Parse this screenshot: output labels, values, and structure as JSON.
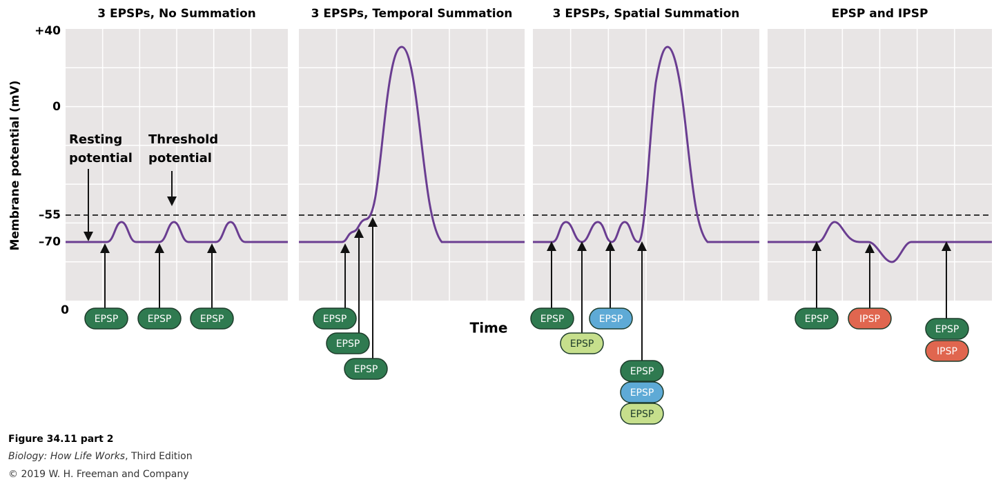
{
  "figure": {
    "axis": {
      "label": "Membrane potential (mV)",
      "ticks": [
        "+40",
        "0",
        "–55",
        "–70",
        "0"
      ],
      "x_label": "Time"
    },
    "annotations": {
      "resting": [
        "Resting",
        "potential"
      ],
      "threshold": [
        "Threshold",
        "potential"
      ]
    },
    "panels": [
      {
        "title": "3 EPSPs, No Summation",
        "badges": [
          {
            "label": "EPSP",
            "color": "#2f7a50"
          },
          {
            "label": "EPSP",
            "color": "#2f7a50"
          },
          {
            "label": "EPSP",
            "color": "#2f7a50"
          }
        ]
      },
      {
        "title": "3 EPSPs, Temporal Summation",
        "badges": [
          {
            "label": "EPSP",
            "color": "#2f7a50"
          },
          {
            "label": "EPSP",
            "color": "#2f7a50"
          },
          {
            "label": "EPSP",
            "color": "#2f7a50"
          }
        ]
      },
      {
        "title": "3 EPSPs, Spatial Summation",
        "badges": [
          {
            "label": "EPSP",
            "color": "#2f7a50"
          },
          {
            "label": "EPSP",
            "color": "#c6df8c"
          },
          {
            "label": "EPSP",
            "color": "#5eaad6"
          },
          {
            "label": "EPSP",
            "color": "#2f7a50"
          },
          {
            "label": "EPSP",
            "color": "#5eaad6"
          },
          {
            "label": "EPSP",
            "color": "#c6df8c"
          }
        ]
      },
      {
        "title": "EPSP and IPSP",
        "badges": [
          {
            "label": "EPSP",
            "color": "#2f7a50"
          },
          {
            "label": "IPSP",
            "color": "#e0664f"
          },
          {
            "label": "EPSP",
            "color": "#2f7a50"
          },
          {
            "label": "IPSP",
            "color": "#e0664f"
          }
        ]
      }
    ],
    "caption": {
      "figure": "Figure 34.11 part 2",
      "book_italic": "Biology: How Life Works",
      "book_rest": ", Third Edition",
      "copyright": "© 2019 W. H. Freeman and Company"
    }
  }
}
